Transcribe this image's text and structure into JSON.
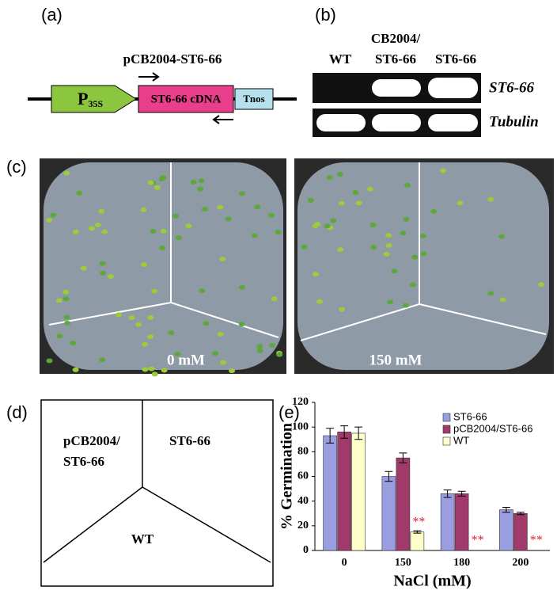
{
  "panel_a": {
    "label": "(a)",
    "title": "pCB2004-ST6-66",
    "promoter": {
      "main": "P",
      "sub": "35S"
    },
    "cdna": "ST6-66 cDNA",
    "terminator": "Tnos"
  },
  "panel_b": {
    "label": "(b)",
    "columns": [
      [
        "WT"
      ],
      [
        "CB2004/",
        "ST6-66"
      ],
      [
        "ST6-66"
      ]
    ],
    "rows": [
      "ST6-66",
      "Tubulin"
    ]
  },
  "panel_c": {
    "label": "(c)",
    "conditions": [
      "0 mM",
      "150 mM"
    ]
  },
  "panel_d": {
    "label": "(d)",
    "sectors": [
      [
        "pCB2004/",
        "ST6-66"
      ],
      [
        "ST6-66"
      ],
      [
        "WT"
      ]
    ]
  },
  "panel_e": {
    "label": "(e)"
  },
  "chart_data": {
    "type": "bar",
    "xlabel": "NaCl (mM)",
    "ylabel": "% Germination",
    "categories": [
      "0",
      "150",
      "180",
      "200"
    ],
    "series": [
      {
        "name": "ST6-66",
        "color": "#9a9ee0",
        "values": [
          93,
          60,
          46,
          33
        ],
        "errors": [
          6,
          4,
          3,
          2
        ]
      },
      {
        "name": "pCB2004/ST6-66",
        "color": "#a03a6a",
        "values": [
          96,
          75,
          46,
          30
        ],
        "errors": [
          5,
          4,
          2,
          1
        ]
      },
      {
        "name": "WT",
        "color": "#ffffcc",
        "values": [
          95,
          15,
          0,
          0
        ],
        "errors": [
          5,
          1,
          0,
          0
        ]
      }
    ],
    "annotations": [
      {
        "series": 2,
        "category": 1,
        "text": "**"
      },
      {
        "series": 2,
        "category": 2,
        "text": "**"
      },
      {
        "series": 2,
        "category": 3,
        "text": "**"
      }
    ],
    "ylim": [
      0,
      120
    ],
    "yticks": [
      0,
      20,
      40,
      60,
      80,
      100,
      120
    ],
    "legend": "upper right",
    "grid": false
  }
}
